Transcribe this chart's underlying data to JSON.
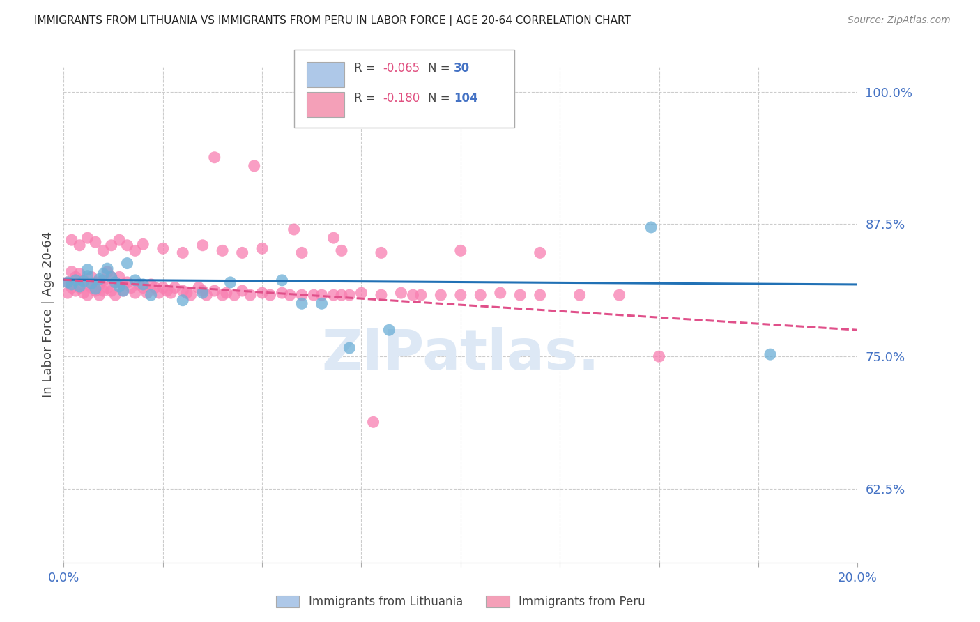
{
  "title": "IMMIGRANTS FROM LITHUANIA VS IMMIGRANTS FROM PERU IN LABOR FORCE | AGE 20-64 CORRELATION CHART",
  "source": "Source: ZipAtlas.com",
  "ylabel": "In Labor Force | Age 20-64",
  "xmin": 0.0,
  "xmax": 0.2,
  "ymin": 0.555,
  "ymax": 1.025,
  "yticks": [
    0.625,
    0.75,
    0.875,
    1.0
  ],
  "ytick_labels": [
    "62.5%",
    "75.0%",
    "87.5%",
    "100.0%"
  ],
  "xticks": [
    0.0,
    0.025,
    0.05,
    0.075,
    0.1,
    0.125,
    0.15,
    0.175,
    0.2
  ],
  "xtick_labels": [
    "0.0%",
    "",
    "",
    "",
    "",
    "",
    "",
    "",
    "20.0%"
  ],
  "lithuania_color": "#6baed6",
  "peru_color": "#f87eb0",
  "lithuania_line_color": "#2171b5",
  "peru_line_color": "#e0508a",
  "background_color": "#ffffff",
  "grid_color": "#cccccc",
  "axis_label_color": "#4472c4",
  "watermark_color": "#dde8f5",
  "legend_box_color_lithuania": "#aec8e8",
  "legend_box_color_peru": "#f4a0b8",
  "lithuania_scatter_x": [
    0.001,
    0.002,
    0.003,
    0.004,
    0.005,
    0.006,
    0.006,
    0.007,
    0.008,
    0.009,
    0.01,
    0.011,
    0.012,
    0.013,
    0.014,
    0.015,
    0.016,
    0.018,
    0.02,
    0.022,
    0.03,
    0.035,
    0.042,
    0.055,
    0.06,
    0.065,
    0.072,
    0.082,
    0.148,
    0.178
  ],
  "lithuania_scatter_y": [
    0.82,
    0.818,
    0.822,
    0.816,
    0.821,
    0.832,
    0.826,
    0.819,
    0.814,
    0.823,
    0.828,
    0.833,
    0.825,
    0.82,
    0.816,
    0.812,
    0.838,
    0.822,
    0.818,
    0.808,
    0.803,
    0.81,
    0.82,
    0.822,
    0.8,
    0.8,
    0.758,
    0.775,
    0.872,
    0.752
  ],
  "peru_scatter_x": [
    0.001,
    0.001,
    0.002,
    0.002,
    0.003,
    0.003,
    0.004,
    0.004,
    0.005,
    0.005,
    0.006,
    0.006,
    0.007,
    0.007,
    0.008,
    0.008,
    0.009,
    0.009,
    0.01,
    0.01,
    0.011,
    0.011,
    0.012,
    0.012,
    0.013,
    0.013,
    0.014,
    0.015,
    0.015,
    0.016,
    0.017,
    0.018,
    0.019,
    0.02,
    0.021,
    0.022,
    0.023,
    0.024,
    0.025,
    0.026,
    0.027,
    0.028,
    0.03,
    0.031,
    0.032,
    0.034,
    0.035,
    0.036,
    0.038,
    0.04,
    0.041,
    0.043,
    0.045,
    0.047,
    0.05,
    0.052,
    0.055,
    0.057,
    0.06,
    0.063,
    0.065,
    0.068,
    0.07,
    0.072,
    0.075,
    0.08,
    0.085,
    0.088,
    0.09,
    0.095,
    0.1,
    0.105,
    0.11,
    0.115,
    0.12,
    0.13,
    0.14,
    0.002,
    0.004,
    0.006,
    0.008,
    0.01,
    0.012,
    0.014,
    0.016,
    0.018,
    0.02,
    0.025,
    0.03,
    0.035,
    0.04,
    0.045,
    0.05,
    0.06,
    0.07,
    0.08,
    0.1,
    0.12,
    0.038,
    0.048,
    0.058,
    0.068,
    0.078,
    0.15
  ],
  "peru_scatter_y": [
    0.82,
    0.81,
    0.83,
    0.815,
    0.825,
    0.812,
    0.828,
    0.815,
    0.822,
    0.81,
    0.818,
    0.808,
    0.825,
    0.815,
    0.82,
    0.812,
    0.818,
    0.808,
    0.822,
    0.812,
    0.83,
    0.815,
    0.825,
    0.812,
    0.82,
    0.808,
    0.825,
    0.818,
    0.812,
    0.82,
    0.815,
    0.81,
    0.818,
    0.815,
    0.81,
    0.818,
    0.815,
    0.81,
    0.815,
    0.812,
    0.81,
    0.815,
    0.812,
    0.81,
    0.808,
    0.815,
    0.812,
    0.808,
    0.812,
    0.808,
    0.81,
    0.808,
    0.812,
    0.808,
    0.81,
    0.808,
    0.81,
    0.808,
    0.808,
    0.808,
    0.808,
    0.808,
    0.808,
    0.808,
    0.81,
    0.808,
    0.81,
    0.808,
    0.808,
    0.808,
    0.808,
    0.808,
    0.81,
    0.808,
    0.808,
    0.808,
    0.808,
    0.86,
    0.855,
    0.862,
    0.858,
    0.85,
    0.855,
    0.86,
    0.855,
    0.85,
    0.856,
    0.852,
    0.848,
    0.855,
    0.85,
    0.848,
    0.852,
    0.848,
    0.85,
    0.848,
    0.85,
    0.848,
    0.938,
    0.93,
    0.87,
    0.862,
    0.688,
    0.75
  ]
}
